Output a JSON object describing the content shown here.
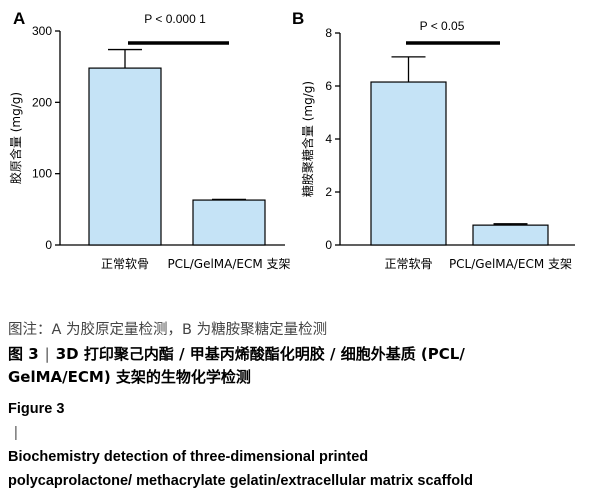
{
  "chart_data": [
    {
      "type": "bar",
      "panel_label": "A",
      "categories": [
        "正常软骨",
        "PCL/GelMA/ECM 支架"
      ],
      "values": [
        248,
        63
      ],
      "errors": [
        26,
        1
      ],
      "ylabel": "胶原含量 (mg/g)",
      "ylim": [
        0,
        300
      ],
      "yticks": [
        0,
        100,
        200,
        300
      ],
      "significance": "P < 0.000 1",
      "grid": false,
      "bar_color": "#c5e3f6"
    },
    {
      "type": "bar",
      "panel_label": "B",
      "categories": [
        "正常软骨",
        "PCL/GelMA/ECM 支架"
      ],
      "values": [
        6.15,
        0.75
      ],
      "errors": [
        0.95,
        0.05
      ],
      "ylabel": "糖胺聚糖含量 (mg/g)",
      "ylim": [
        0,
        8
      ],
      "yticks": [
        0,
        2,
        4,
        6,
        8
      ],
      "significance": "P < 0.05",
      "grid": false,
      "bar_color": "#c5e3f6"
    }
  ],
  "caption": {
    "note": "图注：A 为胶原定量检测，B 为糖胺聚糖定量检测",
    "cn_prefix": "图 3",
    "cn_separator": "|",
    "cn_title_line1": "3D 打印聚己内酯 / 甲基丙烯酸酯化明胶 / 细胞外基质 (PCL/",
    "cn_title_line2": "GelMA/ECM) 支架的生物化学检测",
    "en_prefix": "Figure 3",
    "en_separator": "|",
    "en_title_line1": "Biochemistry detection of three-dimensional printed",
    "en_title_line2": "polycaprolactone/ methacrylate gelatin/extracellular matrix scaffold"
  }
}
